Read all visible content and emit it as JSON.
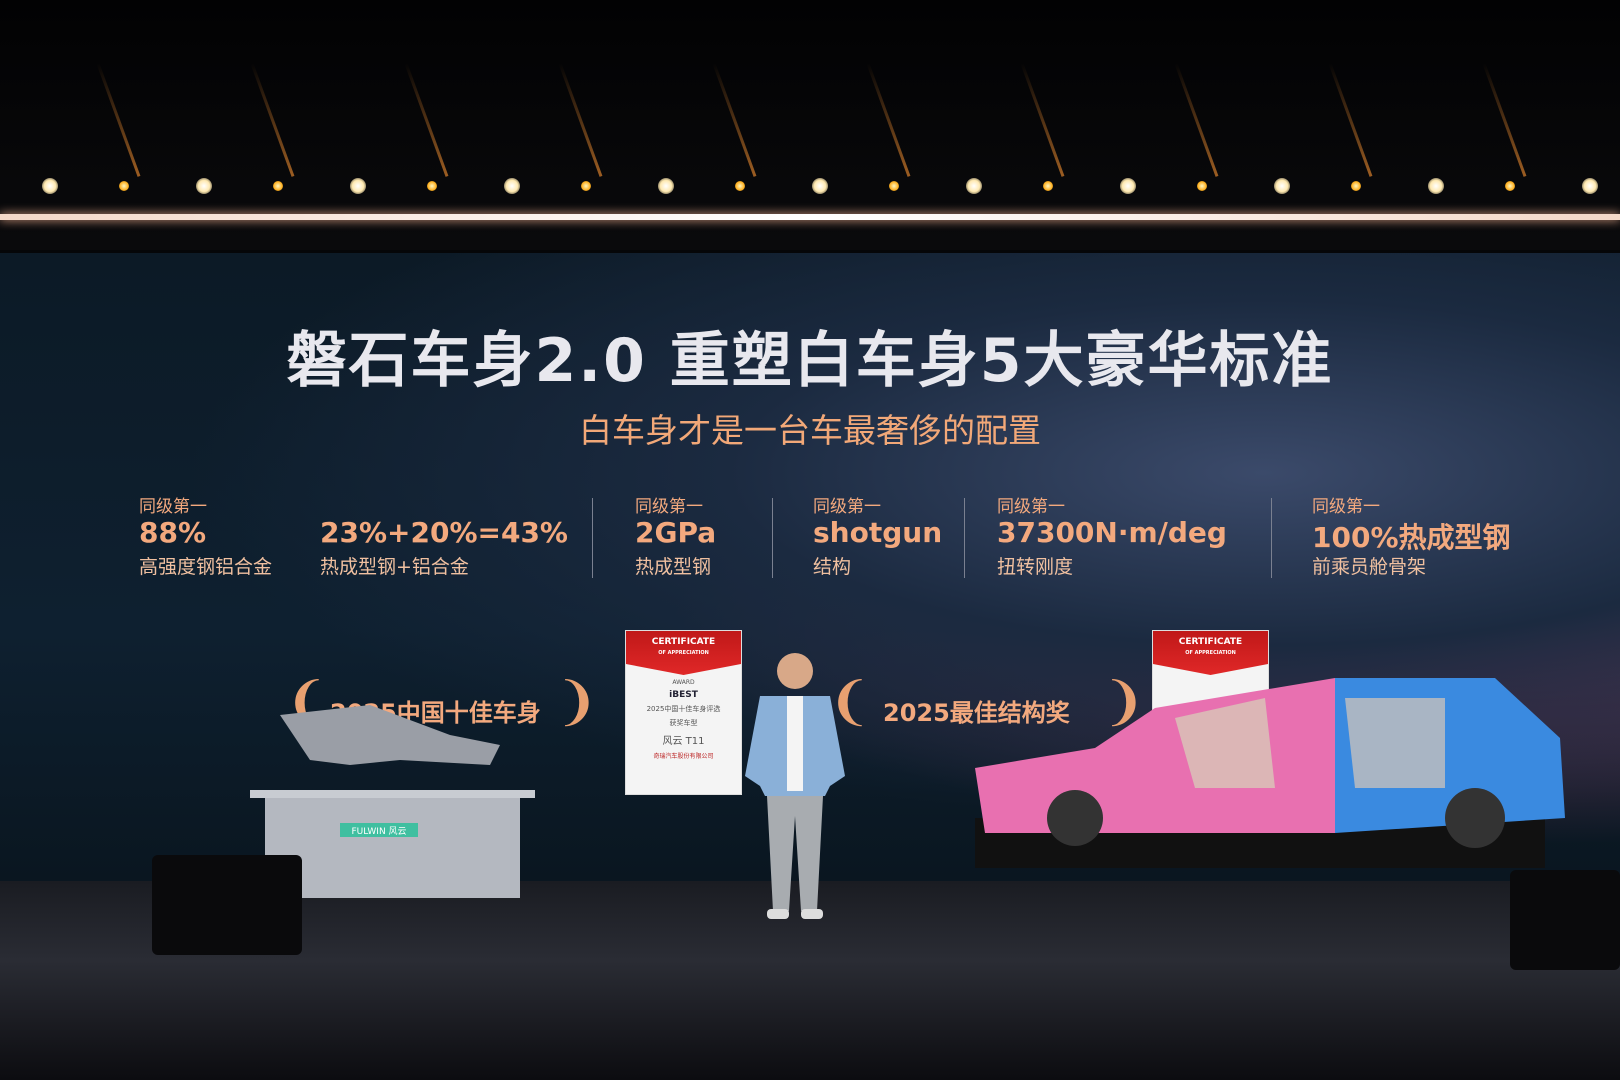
{
  "slide": {
    "title": "磐石车身2.0 重塑白车身5大豪华标准",
    "subtitle": "白车身才是一台车最奢侈的配置",
    "stats": [
      {
        "label": "同级第一",
        "value": "88%",
        "sub": "高强度钢铝合金"
      },
      {
        "label": "",
        "value": "23%+20%=43%",
        "sub": "热成型钢+铝合金"
      },
      {
        "label": "同级第一",
        "value": "2GPa",
        "sub": "热成型钢"
      },
      {
        "label": "同级第一",
        "value": "shotgun",
        "sub": "结构"
      },
      {
        "label": "同级第一",
        "value": "37300N·m/deg",
        "sub": "扭转刚度"
      },
      {
        "label": "同级第一",
        "value": "100%热成型钢",
        "sub": "前乘员舱骨架"
      }
    ],
    "awards": [
      "2025中国十佳车身",
      "2025最佳结构奖"
    ],
    "certificate": {
      "header": "CERTIFICATE",
      "header_sub": "OF APPRECIATION",
      "badge": "AWARD",
      "brand": "iBEST",
      "line1": "2025中国十佳车身评选",
      "line2": "获奖车型",
      "model": "风云 T11",
      "company": "奇瑞汽车股份有限公司"
    }
  },
  "stage": {
    "display_label": "FULWIN 风云"
  },
  "colors": {
    "accent": "#f3a97e",
    "title": "#e8e8ee",
    "body_pink": "#e870b0",
    "body_blue": "#3a8ae0"
  }
}
